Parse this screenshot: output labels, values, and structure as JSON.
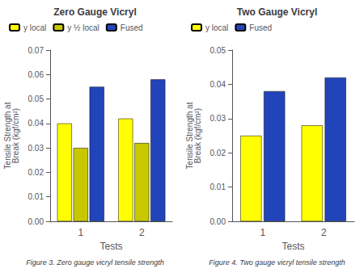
{
  "chart_data": [
    {
      "type": "bar",
      "title": "Zero Gauge Vicryl",
      "x_label": "Tests",
      "y_label": "Tensile Strength at\nBreak (kgf/cm²)",
      "categories": [
        "1",
        "2"
      ],
      "series": [
        {
          "name": "y local",
          "color": "#ffff00",
          "values": [
            0.04,
            0.042
          ]
        },
        {
          "name": "y ½ local",
          "color": "#c8c800",
          "values": [
            0.03,
            0.032
          ]
        },
        {
          "name": "Fused",
          "color": "#2244bb",
          "values": [
            0.055,
            0.058
          ]
        }
      ],
      "ylim": [
        0,
        0.07
      ],
      "yticks": [
        {
          "value": 0,
          "label": "0.00"
        },
        0.01,
        0.02,
        0.03,
        0.04,
        0.05,
        0.06,
        0.07
      ],
      "grid": false,
      "legend": "upper left",
      "annotations": [
        "Figure 3. Zero gauge vicryl tensile strength"
      ]
    },
    {
      "type": "bar",
      "title": "Two Gauge Vicryl",
      "x_label": "Tests",
      "y_label": "Tensile Strength at\nBreak (kgf/cm²)",
      "categories": [
        "1",
        "2"
      ],
      "series": [
        {
          "name": "y local",
          "color": "#ffff00",
          "values": [
            0.025,
            0.028
          ]
        },
        {
          "name": "Fused",
          "color": "#2244bb",
          "values": [
            0.038,
            0.042
          ]
        }
      ],
      "ylim": [
        0,
        0.05
      ],
      "yticks": [
        {
          "value": 0,
          "label": "0.00"
        },
        0.01,
        0.02,
        0.03,
        0.04,
        0.05
      ],
      "grid": false,
      "legend": "upper left",
      "annotations": [
        "Figure 4. Two gauge vicryl tensile strength"
      ]
    }
  ]
}
